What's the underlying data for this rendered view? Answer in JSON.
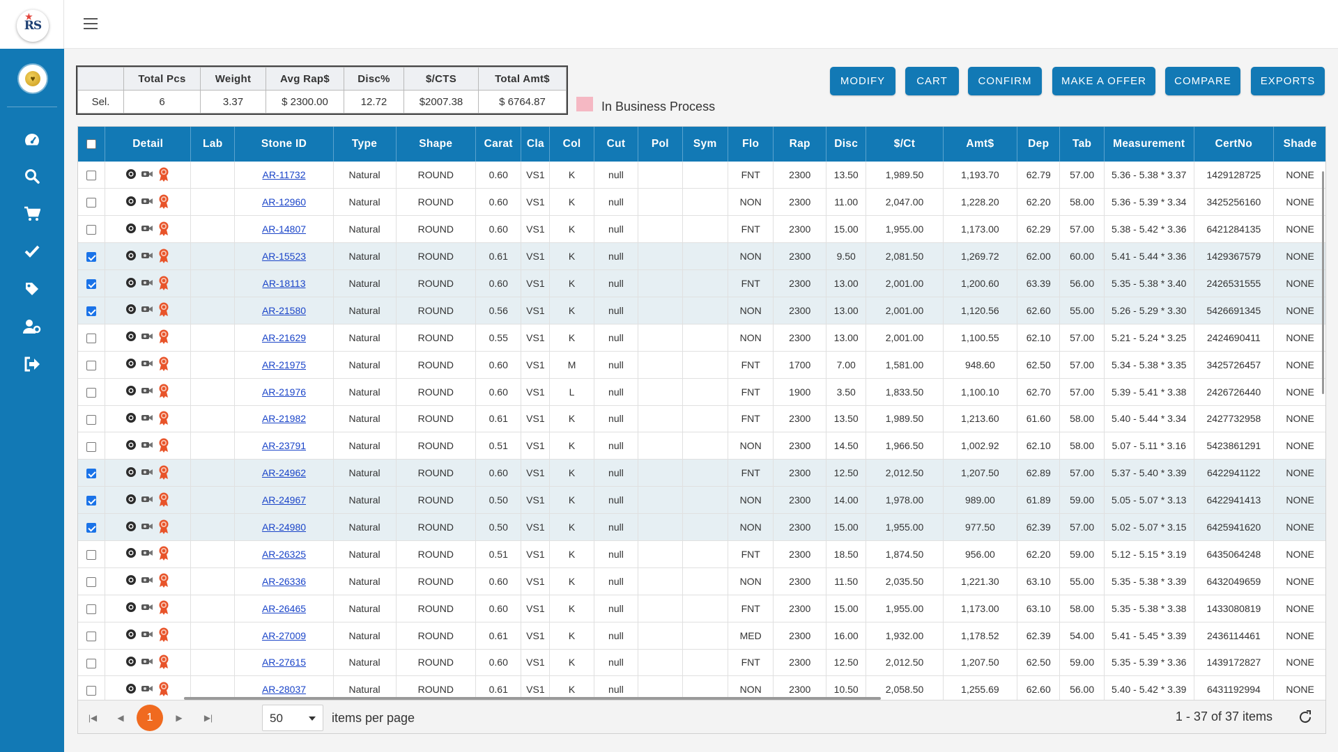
{
  "sidebar": {
    "logo_text": "RS",
    "items": [
      {
        "name": "dashboard-icon"
      },
      {
        "name": "search-icon"
      },
      {
        "name": "cart-icon"
      },
      {
        "name": "check-icon"
      },
      {
        "name": "tag-icon"
      },
      {
        "name": "user-settings-icon"
      },
      {
        "name": "logout-icon"
      }
    ]
  },
  "summary": {
    "headers": [
      "",
      "Total Pcs",
      "Weight",
      "Avg Rap$",
      "Disc%",
      "$/CTS",
      "Total Amt$"
    ],
    "row": [
      "Sel.",
      "6",
      "3.37",
      "$ 2300.00",
      "12.72",
      "$2007.38",
      "$ 6764.87"
    ]
  },
  "legend": {
    "label": "In Business Process",
    "color": "#f5b8c3"
  },
  "actions": [
    "MODIFY",
    "CART",
    "CONFIRM",
    "MAKE A OFFER",
    "COMPARE",
    "EXPORTS"
  ],
  "grid": {
    "columns": [
      "Detail",
      "Lab",
      "Stone ID",
      "Type",
      "Shape",
      "Carat",
      "Cla",
      "Col",
      "Cut",
      "Pol",
      "Sym",
      "Flo",
      "Rap",
      "Disc",
      "$/Ct",
      "Amt$",
      "Dep",
      "Tab",
      "Measurement",
      "CertNo",
      "Shade"
    ],
    "rows": [
      {
        "sel": false,
        "cells": [
          "",
          "AR-11732",
          "Natural",
          "ROUND",
          "0.60",
          "VS1",
          "K",
          "null",
          "",
          "",
          "FNT",
          "2300",
          "13.50",
          "1,989.50",
          "1,193.70",
          "62.79",
          "57.00",
          "5.36 - 5.38 * 3.37",
          "1429128725",
          "NONE"
        ]
      },
      {
        "sel": false,
        "cells": [
          "",
          "AR-12960",
          "Natural",
          "ROUND",
          "0.60",
          "VS1",
          "K",
          "null",
          "",
          "",
          "NON",
          "2300",
          "11.00",
          "2,047.00",
          "1,228.20",
          "62.20",
          "58.00",
          "5.36 - 5.39 * 3.34",
          "3425256160",
          "NONE"
        ]
      },
      {
        "sel": false,
        "cells": [
          "",
          "AR-14807",
          "Natural",
          "ROUND",
          "0.60",
          "VS1",
          "K",
          "null",
          "",
          "",
          "FNT",
          "2300",
          "15.00",
          "1,955.00",
          "1,173.00",
          "62.29",
          "57.00",
          "5.38 - 5.42 * 3.36",
          "6421284135",
          "NONE"
        ]
      },
      {
        "sel": true,
        "cells": [
          "",
          "AR-15523",
          "Natural",
          "ROUND",
          "0.61",
          "VS1",
          "K",
          "null",
          "",
          "",
          "NON",
          "2300",
          "9.50",
          "2,081.50",
          "1,269.72",
          "62.00",
          "60.00",
          "5.41 - 5.44 * 3.36",
          "1429367579",
          "NONE"
        ]
      },
      {
        "sel": true,
        "cells": [
          "",
          "AR-18113",
          "Natural",
          "ROUND",
          "0.60",
          "VS1",
          "K",
          "null",
          "",
          "",
          "FNT",
          "2300",
          "13.00",
          "2,001.00",
          "1,200.60",
          "63.39",
          "56.00",
          "5.35 - 5.38 * 3.40",
          "2426531555",
          "NONE"
        ]
      },
      {
        "sel": true,
        "cells": [
          "",
          "AR-21580",
          "Natural",
          "ROUND",
          "0.56",
          "VS1",
          "K",
          "null",
          "",
          "",
          "NON",
          "2300",
          "13.00",
          "2,001.00",
          "1,120.56",
          "62.60",
          "55.00",
          "5.26 - 5.29 * 3.30",
          "5426691345",
          "NONE"
        ]
      },
      {
        "sel": false,
        "cells": [
          "",
          "AR-21629",
          "Natural",
          "ROUND",
          "0.55",
          "VS1",
          "K",
          "null",
          "",
          "",
          "NON",
          "2300",
          "13.00",
          "2,001.00",
          "1,100.55",
          "62.10",
          "57.00",
          "5.21 - 5.24 * 3.25",
          "2424690411",
          "NONE"
        ]
      },
      {
        "sel": false,
        "cells": [
          "",
          "AR-21975",
          "Natural",
          "ROUND",
          "0.60",
          "VS1",
          "M",
          "null",
          "",
          "",
          "FNT",
          "1700",
          "7.00",
          "1,581.00",
          "948.60",
          "62.50",
          "57.00",
          "5.34 - 5.38 * 3.35",
          "3425726457",
          "NONE"
        ]
      },
      {
        "sel": false,
        "cells": [
          "",
          "AR-21976",
          "Natural",
          "ROUND",
          "0.60",
          "VS1",
          "L",
          "null",
          "",
          "",
          "FNT",
          "1900",
          "3.50",
          "1,833.50",
          "1,100.10",
          "62.70",
          "57.00",
          "5.39 - 5.41 * 3.38",
          "2426726440",
          "NONE"
        ]
      },
      {
        "sel": false,
        "cells": [
          "",
          "AR-21982",
          "Natural",
          "ROUND",
          "0.61",
          "VS1",
          "K",
          "null",
          "",
          "",
          "FNT",
          "2300",
          "13.50",
          "1,989.50",
          "1,213.60",
          "61.60",
          "58.00",
          "5.40 - 5.44 * 3.34",
          "2427732958",
          "NONE"
        ]
      },
      {
        "sel": false,
        "cells": [
          "",
          "AR-23791",
          "Natural",
          "ROUND",
          "0.51",
          "VS1",
          "K",
          "null",
          "",
          "",
          "NON",
          "2300",
          "14.50",
          "1,966.50",
          "1,002.92",
          "62.10",
          "58.00",
          "5.07 - 5.11 * 3.16",
          "5423861291",
          "NONE"
        ]
      },
      {
        "sel": true,
        "cells": [
          "",
          "AR-24962",
          "Natural",
          "ROUND",
          "0.60",
          "VS1",
          "K",
          "null",
          "",
          "",
          "FNT",
          "2300",
          "12.50",
          "2,012.50",
          "1,207.50",
          "62.89",
          "57.00",
          "5.37 - 5.40 * 3.39",
          "6422941122",
          "NONE"
        ]
      },
      {
        "sel": true,
        "cells": [
          "",
          "AR-24967",
          "Natural",
          "ROUND",
          "0.50",
          "VS1",
          "K",
          "null",
          "",
          "",
          "NON",
          "2300",
          "14.00",
          "1,978.00",
          "989.00",
          "61.89",
          "59.00",
          "5.05 - 5.07 * 3.13",
          "6422941413",
          "NONE"
        ]
      },
      {
        "sel": true,
        "cells": [
          "",
          "AR-24980",
          "Natural",
          "ROUND",
          "0.50",
          "VS1",
          "K",
          "null",
          "",
          "",
          "NON",
          "2300",
          "15.00",
          "1,955.00",
          "977.50",
          "62.39",
          "57.00",
          "5.02 - 5.07 * 3.15",
          "6425941620",
          "NONE"
        ]
      },
      {
        "sel": false,
        "cells": [
          "",
          "AR-26325",
          "Natural",
          "ROUND",
          "0.51",
          "VS1",
          "K",
          "null",
          "",
          "",
          "FNT",
          "2300",
          "18.50",
          "1,874.50",
          "956.00",
          "62.20",
          "59.00",
          "5.12 - 5.15 * 3.19",
          "6435064248",
          "NONE"
        ]
      },
      {
        "sel": false,
        "cells": [
          "",
          "AR-26336",
          "Natural",
          "ROUND",
          "0.60",
          "VS1",
          "K",
          "null",
          "",
          "",
          "NON",
          "2300",
          "11.50",
          "2,035.50",
          "1,221.30",
          "63.10",
          "55.00",
          "5.35 - 5.38 * 3.39",
          "6432049659",
          "NONE"
        ]
      },
      {
        "sel": false,
        "cells": [
          "",
          "AR-26465",
          "Natural",
          "ROUND",
          "0.60",
          "VS1",
          "K",
          "null",
          "",
          "",
          "FNT",
          "2300",
          "15.00",
          "1,955.00",
          "1,173.00",
          "63.10",
          "58.00",
          "5.35 - 5.38 * 3.38",
          "1433080819",
          "NONE"
        ]
      },
      {
        "sel": false,
        "cells": [
          "",
          "AR-27009",
          "Natural",
          "ROUND",
          "0.61",
          "VS1",
          "K",
          "null",
          "",
          "",
          "MED",
          "2300",
          "16.00",
          "1,932.00",
          "1,178.52",
          "62.39",
          "54.00",
          "5.41 - 5.45 * 3.39",
          "2436114461",
          "NONE"
        ]
      },
      {
        "sel": false,
        "cells": [
          "",
          "AR-27615",
          "Natural",
          "ROUND",
          "0.60",
          "VS1",
          "K",
          "null",
          "",
          "",
          "FNT",
          "2300",
          "12.50",
          "2,012.50",
          "1,207.50",
          "62.50",
          "59.00",
          "5.35 - 5.39 * 3.36",
          "1439172827",
          "NONE"
        ]
      },
      {
        "sel": false,
        "cells": [
          "",
          "AR-28037",
          "Natural",
          "ROUND",
          "0.61",
          "VS1",
          "K",
          "null",
          "",
          "",
          "NON",
          "2300",
          "10.50",
          "2,058.50",
          "1,255.69",
          "62.60",
          "56.00",
          "5.40 - 5.42 * 3.39",
          "6431192994",
          "NONE"
        ]
      }
    ]
  },
  "pager": {
    "current_page": "1",
    "per_page": "50",
    "per_page_label": "items per page",
    "range": "1 - 37 of 37 items"
  },
  "colors": {
    "brand": "#1279b5",
    "pager_active": "#f06a1f",
    "selected_row": "#e6eff3"
  }
}
